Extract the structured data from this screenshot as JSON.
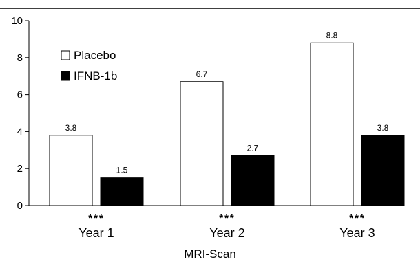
{
  "chart_data": {
    "type": "bar",
    "categories": [
      "Year 1",
      "Year 2",
      "Year 3"
    ],
    "series": [
      {
        "name": "Placebo",
        "values": [
          3.8,
          6.7,
          8.8
        ],
        "color": "#ffffff",
        "value_labels": [
          "3.8",
          "6.7",
          "8.8"
        ]
      },
      {
        "name": "IFNB-1b",
        "values": [
          1.5,
          2.7,
          3.8
        ],
        "color": "#000000",
        "value_labels": [
          "1.5",
          "2.7",
          "3.8"
        ]
      }
    ],
    "significance": [
      "***",
      "***",
      "***"
    ],
    "xlabel": "MRI-Scan",
    "ylabel": "",
    "ylim": [
      0,
      10
    ],
    "yticks": [
      "0",
      "2",
      "4",
      "6",
      "8",
      "10"
    ],
    "legend_position": "top-left",
    "grid": false
  }
}
